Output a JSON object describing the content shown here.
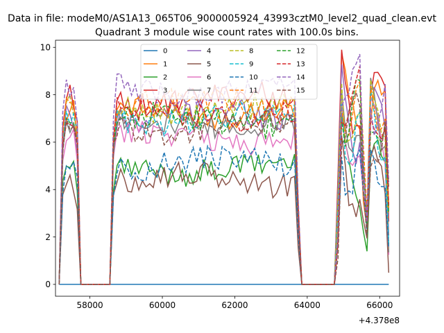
{
  "chart_data": {
    "type": "line",
    "suptitle": "Data in file: modeM0/AS1A13_065T06_9000005924_43993cztM0_level2_quad_clean.evt",
    "title": "Quadrant 3 module wise count rates with 100.0s bins.",
    "xlabel": "",
    "ylabel": "",
    "x_offset_label": "+4.378e8",
    "xlim": [
      57050,
      66550
    ],
    "ylim": [
      -0.5,
      10.3
    ],
    "x_ticks": [
      58000,
      60000,
      62000,
      64000,
      66000
    ],
    "y_ticks": [
      0,
      2,
      4,
      6,
      8,
      10
    ],
    "x_tick_labels": [
      "58000",
      "60000",
      "62000",
      "64000",
      "66000"
    ],
    "y_tick_labels": [
      "0",
      "2",
      "4",
      "6",
      "8",
      "10"
    ],
    "grid": false,
    "legend_position": "top-center",
    "legend_columns": 4,
    "series": [
      {
        "name": "0",
        "color": "#1f77b4",
        "dash": "solid",
        "level": 0.0,
        "seed": 0
      },
      {
        "name": "1",
        "color": "#ff7f0e",
        "dash": "solid",
        "level": 7.3,
        "seed": 1
      },
      {
        "name": "2",
        "color": "#2ca02c",
        "dash": "solid",
        "level": 4.9,
        "seed": 2
      },
      {
        "name": "3",
        "color": "#d62728",
        "dash": "solid",
        "level": 7.8,
        "seed": 3
      },
      {
        "name": "4",
        "color": "#9467bd",
        "dash": "solid",
        "level": 7.1,
        "seed": 4
      },
      {
        "name": "5",
        "color": "#8c564b",
        "dash": "solid",
        "level": 4.4,
        "seed": 5
      },
      {
        "name": "6",
        "color": "#e377c2",
        "dash": "solid",
        "level": 6.2,
        "seed": 6
      },
      {
        "name": "7",
        "color": "#7f7f7f",
        "dash": "solid",
        "level": 6.8,
        "seed": 7
      },
      {
        "name": "8",
        "color": "#bcbd22",
        "dash": "dashed",
        "level": 7.4,
        "seed": 8
      },
      {
        "name": "9",
        "color": "#17becf",
        "dash": "dashed",
        "level": 7.0,
        "seed": 9
      },
      {
        "name": "10",
        "color": "#1f77b4",
        "dash": "dashed",
        "level": 5.1,
        "seed": 10
      },
      {
        "name": "11",
        "color": "#ff7f0e",
        "dash": "dashed",
        "level": 7.6,
        "seed": 11
      },
      {
        "name": "12",
        "color": "#2ca02c",
        "dash": "dashed",
        "level": 6.9,
        "seed": 12
      },
      {
        "name": "13",
        "color": "#d62728",
        "dash": "dashed",
        "level": 7.2,
        "seed": 13
      },
      {
        "name": "14",
        "color": "#9467bd",
        "dash": "dashed",
        "level": 8.2,
        "seed": 14
      },
      {
        "name": "15",
        "color": "#8c564b",
        "dash": "dashed",
        "level": 6.6,
        "seed": 15
      }
    ],
    "segments": [
      {
        "x_start": 57150,
        "x_end": 57750,
        "active": true
      },
      {
        "x_start": 57750,
        "x_end": 58550,
        "active": false
      },
      {
        "x_start": 58550,
        "x_end": 63800,
        "active": true
      },
      {
        "x_start": 63800,
        "x_end": 64800,
        "active": false
      },
      {
        "x_start": 64800,
        "x_end": 66300,
        "active": true
      }
    ]
  }
}
